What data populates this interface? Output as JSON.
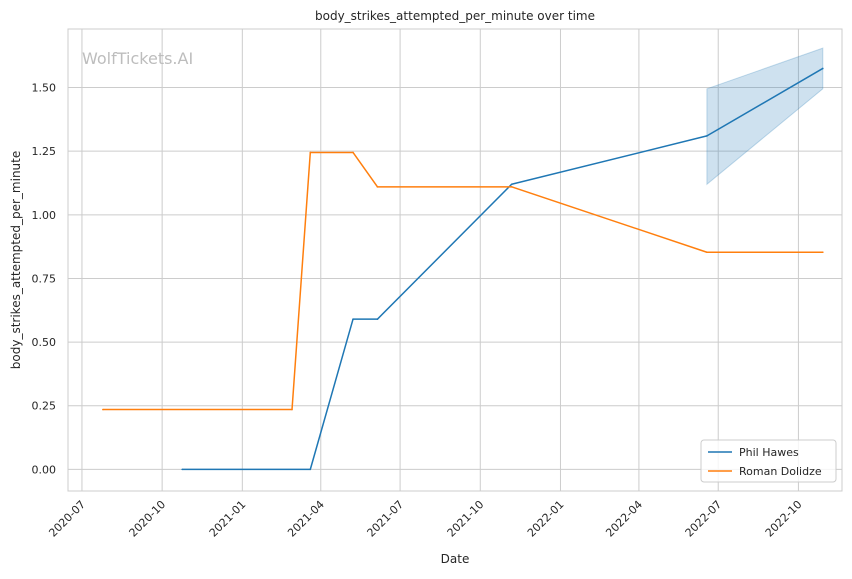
{
  "watermark": "WolfTickets.AI",
  "chart_data": {
    "type": "line",
    "title": "body_strikes_attempted_per_minute over time",
    "xlabel": "Date",
    "ylabel": "body_strikes_attempted_per_minute",
    "x_ticks": [
      "2020-07",
      "2020-10",
      "2021-01",
      "2021-04",
      "2021-07",
      "2021-10",
      "2022-01",
      "2022-04",
      "2022-07",
      "2022-10"
    ],
    "y_ticks": [
      "0.00",
      "0.25",
      "0.50",
      "0.75",
      "1.00",
      "1.25",
      "1.50"
    ],
    "xlim": [
      "2020-06-15",
      "2022-11-20"
    ],
    "ylim": [
      -0.085,
      1.73
    ],
    "grid": true,
    "legend_position": "lower-right",
    "series": [
      {
        "name": "Phil Hawes",
        "color": "#1f77b4",
        "x": [
          "2020-10-24",
          "2021-03-20",
          "2021-05-08",
          "2021-06-05",
          "2021-11-06",
          "2022-06-18",
          "2022-10-29"
        ],
        "values": [
          0.0,
          0.0,
          0.59,
          0.59,
          1.12,
          1.31,
          1.575
        ],
        "band": {
          "x": [
            "2022-06-18",
            "2022-10-29"
          ],
          "lower": [
            1.12,
            1.495
          ],
          "upper": [
            1.495,
            1.655
          ]
        }
      },
      {
        "name": "Roman Dolidze",
        "color": "#ff7f0e",
        "x": [
          "2020-07-25",
          "2021-02-27",
          "2021-03-20",
          "2021-05-08",
          "2021-06-05",
          "2021-11-06",
          "2022-06-18",
          "2022-10-29"
        ],
        "values": [
          0.235,
          0.235,
          1.245,
          1.245,
          1.11,
          1.11,
          0.853,
          0.853
        ]
      }
    ]
  }
}
